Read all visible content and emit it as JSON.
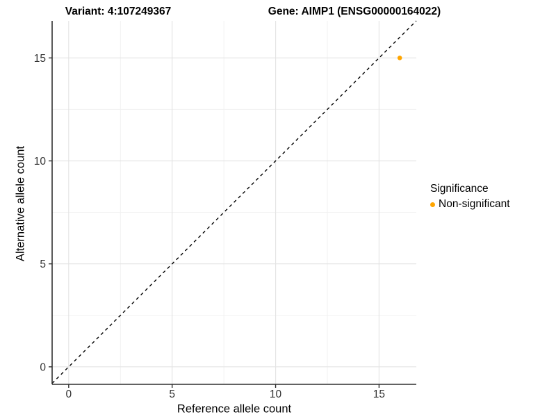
{
  "figure": {
    "titles": {
      "variant": "Variant: 4:107249367",
      "gene": "Gene: AIMP1 (ENSG00000164022)"
    }
  },
  "axes": {
    "x": {
      "label": "Reference allele count"
    },
    "y": {
      "label": "Alternative allele count"
    }
  },
  "legend": {
    "title": "Significance",
    "items": [
      {
        "label": "Non-significant",
        "color": "#FFA500",
        "marker": "circle-icon"
      }
    ]
  },
  "colors": {
    "background": "#FFFFFF",
    "point": "#FFA500",
    "grid_major": "#E4E4E4",
    "grid_minor": "#F1F1F1",
    "axis_line": "#2F2F2F",
    "tick_label": "#333333",
    "dashed_line": "#000000"
  },
  "chart_data": {
    "type": "scatter",
    "title": "Variant: 4:107249367    Gene: AIMP1 (ENSG00000164022)",
    "xlabel": "Reference allele count",
    "ylabel": "Alternative allele count",
    "xlim": [
      -0.8,
      16.8
    ],
    "ylim": [
      -0.85,
      16.8
    ],
    "x_ticks": [
      0,
      5,
      10,
      15
    ],
    "y_ticks": [
      0,
      5,
      10,
      15
    ],
    "grid": true,
    "legend_position": "right",
    "series": [
      {
        "name": "Non-significant",
        "color": "#FFA500",
        "marker": "circle",
        "points": [
          [
            16,
            15
          ]
        ]
      }
    ],
    "annotations": [
      {
        "type": "identity-line",
        "equation": "y = x",
        "style": "dashed",
        "color": "#000000"
      }
    ]
  }
}
